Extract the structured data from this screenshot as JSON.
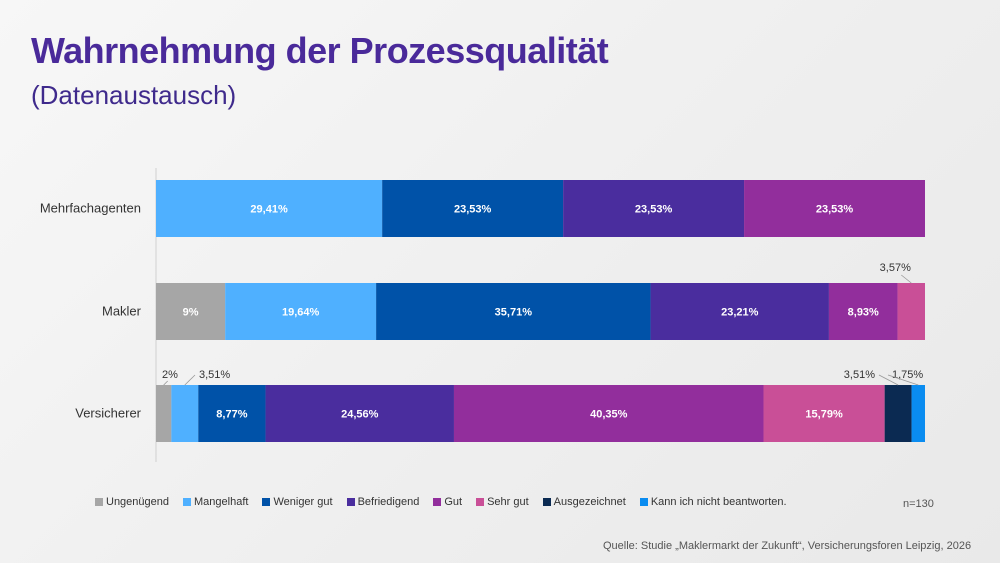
{
  "chart_data": {
    "type": "bar",
    "orientation": "horizontal",
    "stacked": true,
    "title": "Wahrnehmung der Prozessqualität",
    "subtitle": "(Datenaustausch)",
    "categories": [
      "Mehrfachagenten",
      "Makler",
      "Versicherer"
    ],
    "series": [
      {
        "name": "Ungenügend",
        "color": "#a6a6a6",
        "values": [
          0,
          9,
          2
        ],
        "labels": [
          "",
          "9%",
          "2%"
        ]
      },
      {
        "name": "Mangelhaft",
        "color": "#4fb0ff",
        "values": [
          29.41,
          19.64,
          3.51
        ],
        "labels": [
          "29,41%",
          "19,64%",
          "3,51%"
        ]
      },
      {
        "name": "Weniger gut",
        "color": "#0052a8",
        "values": [
          23.53,
          35.71,
          8.77
        ],
        "labels": [
          "23,53%",
          "35,71%",
          "8,77%"
        ]
      },
      {
        "name": "Befriedigend",
        "color": "#4a2d9e",
        "values": [
          23.53,
          23.21,
          24.56
        ],
        "labels": [
          "23,53%",
          "23,21%",
          "24,56%"
        ]
      },
      {
        "name": "Gut",
        "color": "#922e9c",
        "values": [
          23.53,
          8.93,
          40.35
        ],
        "labels": [
          "23,53%",
          "8,93%",
          "40,35%"
        ]
      },
      {
        "name": "Sehr gut",
        "color": "#c94f97",
        "values": [
          0,
          3.57,
          15.79
        ],
        "labels": [
          "",
          "3,57%",
          "15,79%"
        ]
      },
      {
        "name": "Ausgezeichnet",
        "color": "#0b2a52",
        "values": [
          0,
          0,
          3.51
        ],
        "labels": [
          "",
          "",
          "3,51%"
        ]
      },
      {
        "name": "Kann ich nicht beantworten.",
        "color": "#0a8cf0",
        "values": [
          0,
          0,
          1.75
        ],
        "labels": [
          "",
          "",
          "1,75%"
        ]
      }
    ],
    "outside_labels": [
      {
        "category": "Makler",
        "series": "Sehr gut"
      },
      {
        "category": "Versicherer",
        "series": "Ungenügend"
      },
      {
        "category": "Versicherer",
        "series": "Mangelhaft"
      },
      {
        "category": "Versicherer",
        "series": "Ausgezeichnet"
      },
      {
        "category": "Versicherer",
        "series": "Kann ich nicht beantworten."
      }
    ],
    "xlim": [
      0,
      100
    ],
    "grid": false,
    "legend_position": "bottom",
    "note": "n=130",
    "source": "Quelle: Studie „Maklermarkt der Zukunft“, Versicherungsforen Leipzig, 2026"
  }
}
